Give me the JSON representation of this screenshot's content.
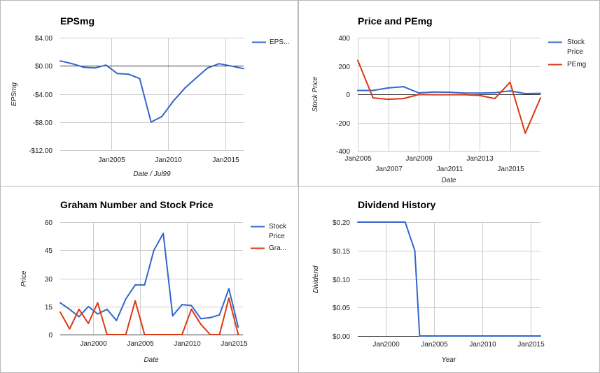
{
  "chart_data": [
    {
      "id": "eps",
      "type": "line",
      "title": "EPSmg",
      "xlabel": "Date / Jul99",
      "ylabel": "EPSmg",
      "xlim": [
        2000.55,
        2016.6
      ],
      "ylim": [
        -12,
        4
      ],
      "y_ticks": [
        4,
        0,
        -4,
        -8,
        -12
      ],
      "y_tick_labels": [
        "$4.00",
        "$0.00",
        "-$4.00",
        "-$8.00",
        "-$12.00"
      ],
      "x_ticks": [
        2005,
        2010,
        2015
      ],
      "x_tick_labels": [
        "Jan2005",
        "Jan2010",
        "Jan2015"
      ],
      "zero_line": true,
      "grid": true,
      "legend_position": "right",
      "series": [
        {
          "name": "EPS...",
          "color": "#3366cc",
          "x": [
            2000.55,
            2001.6,
            2002.6,
            2003.6,
            2004.55,
            2005.55,
            2006.55,
            2007.5,
            2008.5,
            2009.45,
            2010.45,
            2011.45,
            2012.45,
            2013.45,
            2014.45,
            2015.45,
            2016.6
          ],
          "y": [
            0.7,
            0.3,
            -0.2,
            -0.3,
            0.1,
            -1.1,
            -1.2,
            -1.8,
            -8.0,
            -7.2,
            -5.0,
            -3.2,
            -1.7,
            -0.3,
            0.3,
            0.0,
            -0.4
          ]
        }
      ]
    },
    {
      "id": "pe",
      "type": "line",
      "title": "Price and PEmg",
      "xlabel": "Date",
      "ylabel": "Stock Price",
      "xlim": [
        2005,
        2017
      ],
      "ylim": [
        -400,
        400
      ],
      "y_ticks": [
        400,
        200,
        0,
        -200,
        -400
      ],
      "y_tick_labels": [
        "400",
        "200",
        "0",
        "-200",
        "-400"
      ],
      "x_ticks": [
        2005,
        2007,
        2009,
        2011,
        2013,
        2015
      ],
      "x_tick_labels": [
        "Jan2005",
        "Jan2007",
        "Jan2009",
        "Jan2011",
        "Jan2013",
        "Jan2015"
      ],
      "zero_line": true,
      "grid": true,
      "legend_position": "right",
      "series": [
        {
          "name": "Stock Price",
          "color": "#3366cc",
          "x": [
            2005,
            2006,
            2007,
            2008,
            2009,
            2010,
            2011,
            2012,
            2013,
            2014,
            2015,
            2016,
            2017
          ],
          "y": [
            27,
            27,
            45,
            54,
            10,
            16,
            15,
            9,
            9,
            11,
            24,
            5,
            7
          ]
        },
        {
          "name": "PEmg",
          "color": "#dc3912",
          "x": [
            2005,
            2006,
            2007,
            2008,
            2009,
            2010,
            2011,
            2012,
            2013,
            2014,
            2015,
            2016,
            2017
          ],
          "y": [
            240,
            -25,
            -35,
            -30,
            -2,
            -3,
            -3,
            -3,
            -8,
            -30,
            85,
            -275,
            -25
          ]
        }
      ]
    },
    {
      "id": "graham",
      "type": "line",
      "title": "Graham Number and Stock Price",
      "xlabel": "Date",
      "ylabel": "Price",
      "xlim": [
        1996.5,
        2016.0
      ],
      "ylim": [
        0,
        60
      ],
      "y_ticks": [
        60,
        45,
        30,
        15,
        0
      ],
      "y_tick_labels": [
        "60",
        "45",
        "30",
        "15",
        "0"
      ],
      "x_ticks": [
        2000,
        2005,
        2010,
        2015
      ],
      "x_tick_labels": [
        "Jan2000",
        "Jan2005",
        "Jan2010",
        "Jan2015"
      ],
      "zero_line": true,
      "grid": true,
      "legend_position": "right",
      "series": [
        {
          "name": "Stock Price",
          "color": "#3366cc",
          "x": [
            1996.5,
            1997.5,
            1998.5,
            1999.5,
            2000.5,
            2001.5,
            2002.5,
            2003.5,
            2004.5,
            2005.5,
            2006.5,
            2007.5,
            2008.5,
            2009.5,
            2010.5,
            2011.5,
            2012.5,
            2013.5,
            2014.5,
            2015.5
          ],
          "y": [
            17,
            13.5,
            9.5,
            15,
            11,
            13.5,
            7.5,
            19,
            26.5,
            26.5,
            45,
            54,
            10,
            16,
            15.5,
            8.5,
            9,
            10.5,
            24.5,
            4
          ]
        },
        {
          "name": "Gra...",
          "color": "#dc3912",
          "x": [
            1996.5,
            1997.5,
            1998.5,
            1999.5,
            2000.5,
            2001.5,
            2002.5,
            2003.5,
            2004.5,
            2005.5,
            2006.5,
            2007.5,
            2008.5,
            2009.5,
            2010.5,
            2011.5,
            2012.5,
            2013.5,
            2014.5,
            2015.5
          ],
          "y": [
            12,
            3,
            13.5,
            6,
            17,
            0,
            0,
            0,
            18,
            0,
            0,
            0,
            0,
            0,
            13.5,
            5.5,
            0,
            0,
            19.5,
            0
          ]
        }
      ]
    },
    {
      "id": "dividend",
      "type": "line",
      "title": "Dividend History",
      "xlabel": "Year",
      "ylabel": "Dividend",
      "xlim": [
        1997.1,
        2016.0
      ],
      "ylim": [
        0,
        0.2
      ],
      "y_ticks": [
        0.2,
        0.15,
        0.1,
        0.05,
        0
      ],
      "y_tick_labels": [
        "$0.20",
        "$0.15",
        "$0.10",
        "$0.05",
        "$0.00"
      ],
      "x_ticks": [
        2000,
        2005,
        2010,
        2015
      ],
      "x_tick_labels": [
        "Jan2000",
        "Jan2005",
        "Jan2010",
        "Jan2015"
      ],
      "zero_line": true,
      "grid": true,
      "legend_position": "none",
      "series": [
        {
          "name": "",
          "color": "#3366cc",
          "x": [
            1997.1,
            2002.0,
            2003.0,
            2003.5,
            2016.0
          ],
          "y": [
            0.2,
            0.2,
            0.15,
            0.0,
            0.0
          ]
        }
      ]
    }
  ]
}
